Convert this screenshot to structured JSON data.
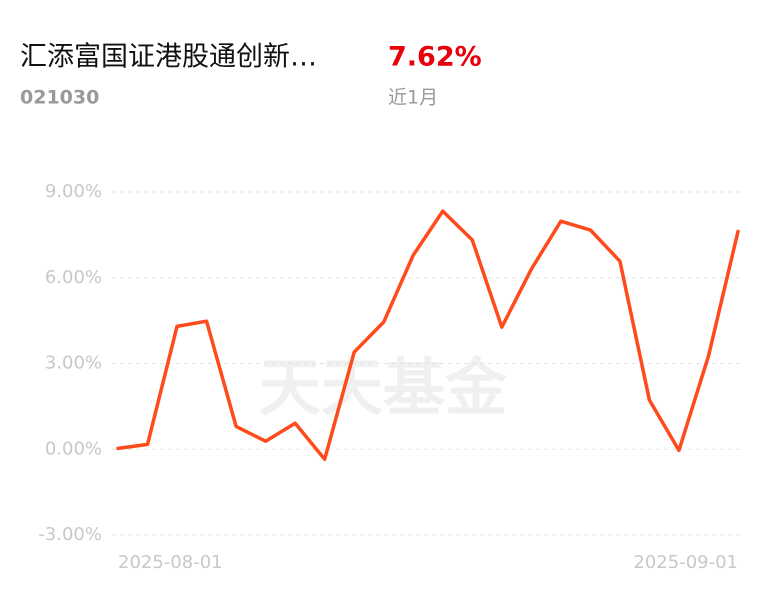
{
  "header": {
    "fund_name": "汇添富国证港股通创新…",
    "return": "7.62%",
    "code": "021030",
    "period": "近1月"
  },
  "chart_data": {
    "type": "line",
    "watermark": "天天基金",
    "categories": [
      "2025-08-01",
      null,
      null,
      null,
      null,
      null,
      null,
      null,
      null,
      null,
      null,
      null,
      null,
      null,
      null,
      null,
      null,
      null,
      null,
      null,
      null,
      "2025-09-01"
    ],
    "series": [
      {
        "color": "#ff4a1c",
        "values": [
          0.03,
          0.17,
          4.3,
          4.48,
          0.8,
          0.28,
          0.91,
          -0.35,
          3.4,
          4.45,
          6.79,
          8.33,
          7.32,
          4.27,
          6.3,
          7.98,
          7.67,
          6.58,
          1.72,
          -0.04,
          3.26,
          7.62
        ]
      }
    ],
    "ylim": [
      -3,
      9
    ],
    "yticks": [
      {
        "value": 9,
        "label": "9.00%"
      },
      {
        "value": 6,
        "label": "6.00%"
      },
      {
        "value": 3,
        "label": "3.00%"
      },
      {
        "value": 0,
        "label": "0.00%"
      },
      {
        "value": -3,
        "label": "-3.00%"
      }
    ],
    "grid": true
  }
}
